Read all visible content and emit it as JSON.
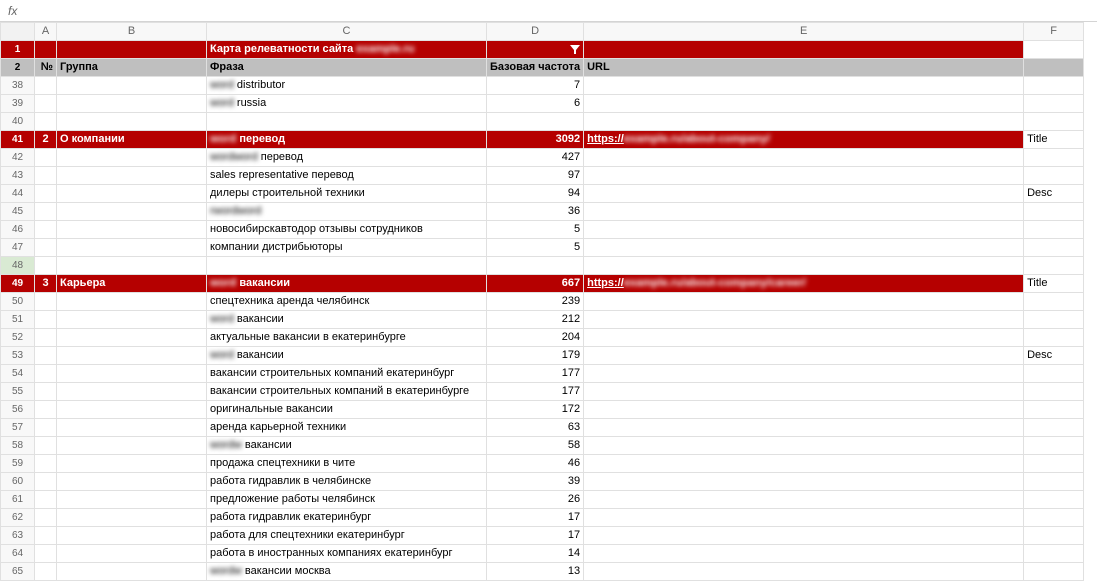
{
  "formula_bar": {
    "fx_label": "fx"
  },
  "columns": [
    "A",
    "B",
    "C",
    "D",
    "E",
    "F"
  ],
  "title_row": {
    "row_num": "1",
    "text_prefix": "Карта релеватности сайта ",
    "text_blur": "example.ru"
  },
  "header_row": {
    "row_num": "2",
    "num": "№",
    "group": "Группа",
    "phrase": "Фраза",
    "freq": "Базовая частота",
    "url": "URL"
  },
  "rows": [
    {
      "n": "38",
      "c_blur": "word",
      "c": " distributor",
      "d": "7"
    },
    {
      "n": "39",
      "c_blur": "word",
      "c": " russia",
      "d": "6"
    },
    {
      "n": "40",
      "empty": true
    },
    {
      "n": "41",
      "group": true,
      "a": "2",
      "b": "О компании",
      "c_blur": "word",
      "c": " перевод",
      "d": "3092",
      "e_prefix": "https://",
      "e_blur": "example.ru/about-company/",
      "f": "Title"
    },
    {
      "n": "42",
      "c_blur": "wordword",
      "c": " перевод",
      "d": "427"
    },
    {
      "n": "43",
      "c": "sales representative перевод",
      "d": "97"
    },
    {
      "n": "44",
      "c": "дилеры строительной техники",
      "d": "94",
      "f": "Desc"
    },
    {
      "n": "45",
      "c_full_blur": "rwordword",
      "c": "",
      "d": "36"
    },
    {
      "n": "46",
      "c": "новосибирскавтодор отзывы сотрудников",
      "d": "5"
    },
    {
      "n": "47",
      "c": "компании дистрибьюторы",
      "d": "5"
    },
    {
      "n": "48",
      "empty": true,
      "selected": true
    },
    {
      "n": "49",
      "group": true,
      "a": "3",
      "b": "Карьера",
      "c_blur": "word",
      "c": " вакансии",
      "d": "667",
      "e_prefix": "https://",
      "e_blur": "example.ru/about-company/career/",
      "f": "Title"
    },
    {
      "n": "50",
      "c": "спецтехника аренда челябинск",
      "d": "239"
    },
    {
      "n": "51",
      "c_blur": "word",
      "c": " вакансии",
      "d": "212"
    },
    {
      "n": "52",
      "c": "актуальные вакансии в екатеринбурге",
      "d": "204"
    },
    {
      "n": "53",
      "c_blur": "word",
      "c": " вакансии",
      "d": "179",
      "f": "Desc"
    },
    {
      "n": "54",
      "c": "вакансии строительных компаний екатеринбург",
      "d": "177"
    },
    {
      "n": "55",
      "c": "вакансии строительных компаний в екатеринбурге",
      "d": "177"
    },
    {
      "n": "56",
      "c": "оригинальные вакансии",
      "d": "172"
    },
    {
      "n": "57",
      "c": "аренда карьерной техники",
      "d": "63"
    },
    {
      "n": "58",
      "c_blur": "wordw",
      "c": " вакансии",
      "d": "58"
    },
    {
      "n": "59",
      "c": "продажа спецтехники в чите",
      "d": "46"
    },
    {
      "n": "60",
      "c": "работа гидравлик в челябинске",
      "d": "39"
    },
    {
      "n": "61",
      "c": "предложение работы челябинск",
      "d": "26"
    },
    {
      "n": "62",
      "c": "работа гидравлик екатеринбург",
      "d": "17"
    },
    {
      "n": "63",
      "c": "работа для спецтехники екатеринбург",
      "d": "17"
    },
    {
      "n": "64",
      "c": "работа в иностранных компаниях екатеринбург",
      "d": "14"
    },
    {
      "n": "65",
      "c_blur": "wordw",
      "c": " вакансии москва",
      "d": "13"
    }
  ]
}
